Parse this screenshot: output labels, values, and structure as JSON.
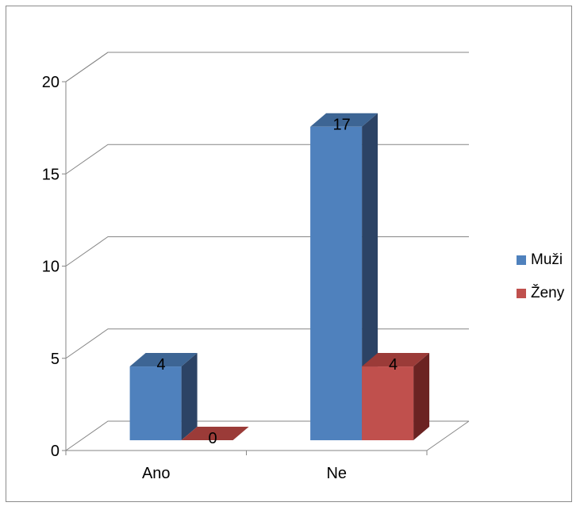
{
  "chart_data": {
    "type": "bar",
    "style": "3d-clustered-column",
    "categories": [
      "Ano",
      "Ne"
    ],
    "series": [
      {
        "name": "Muži",
        "values": [
          4,
          17
        ],
        "color": "#4f81bd",
        "side_color": "#2c4365",
        "top_color": "#3d6594"
      },
      {
        "name": "Ženy",
        "values": [
          0,
          4
        ],
        "color": "#c0504d",
        "side_color": "#6b2322",
        "top_color": "#9b3b38"
      }
    ],
    "yticks": [
      0,
      5,
      10,
      15,
      20
    ],
    "ylim": [
      0,
      20
    ],
    "grid": true,
    "data_labels": true,
    "legend": {
      "position": "right"
    }
  }
}
